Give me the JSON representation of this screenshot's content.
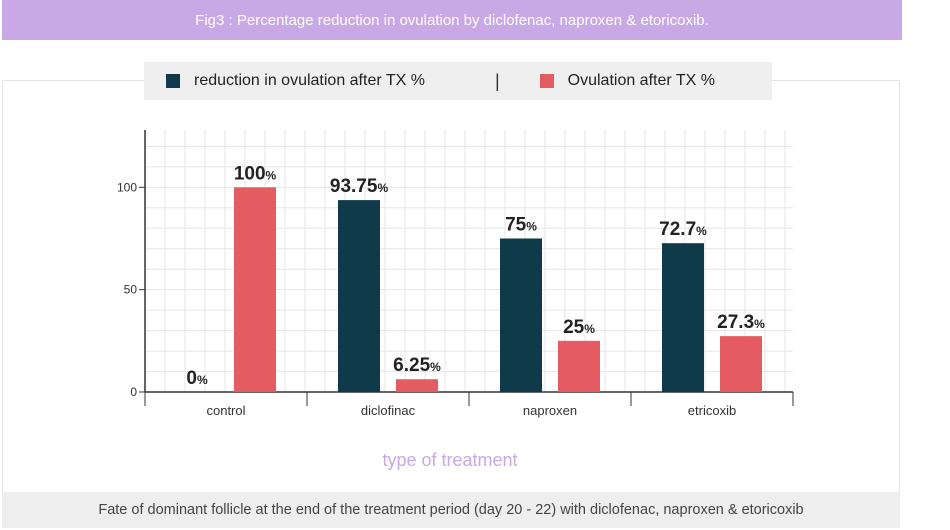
{
  "header": {
    "title": "Fig3 : Percentage reduction in ovulation by diclofenac, naproxen & etoricoxib."
  },
  "legend": {
    "separator": "|"
  },
  "footer": {
    "caption": "Fate of dominant follicle at the end of the treatment period (day 20 - 22) with diclofenac, naproxen & etoricoxib"
  },
  "chart_data": {
    "type": "bar",
    "title": "Fig3 : Percentage reduction in ovulation by diclofenac, naproxen & etoricoxib.",
    "xlabel": "type of treatment",
    "ylabel": "",
    "categories": [
      "control",
      "diclofinac",
      "naproxen",
      "etricoxib"
    ],
    "series": [
      {
        "name": "reduction in ovulation after TX %",
        "color": "#0e3a4a",
        "values": [
          0,
          93.75,
          75,
          72.7
        ],
        "labels": [
          "0",
          "93.75",
          "75",
          "72.7"
        ]
      },
      {
        "name": "Ovulation after TX %",
        "color": "#e45c62",
        "values": [
          100,
          6.25,
          25,
          27.3
        ],
        "labels": [
          "100",
          "6.25",
          "25",
          "27.3"
        ]
      }
    ],
    "data_label_suffix": "%",
    "yticks": [
      0,
      50,
      100
    ],
    "ylim": [
      0,
      128
    ],
    "grid": true,
    "legend_position": "top"
  }
}
